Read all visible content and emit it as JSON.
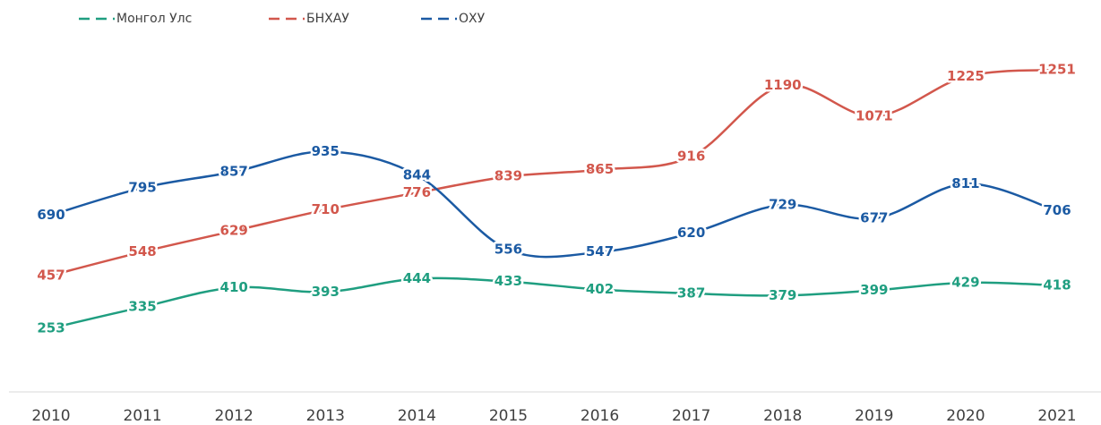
{
  "chart_data": {
    "type": "line",
    "categories": [
      "2010",
      "2011",
      "2012",
      "2013",
      "2014",
      "2015",
      "2016",
      "2017",
      "2018",
      "2019",
      "2020",
      "2021"
    ],
    "series": [
      {
        "name": "Монгол Улс",
        "color": "#1f9e80",
        "values": [
          253,
          335,
          410,
          393,
          444,
          433,
          402,
          387,
          379,
          399,
          429,
          418
        ]
      },
      {
        "name": "БНХАУ",
        "color": "#d2574c",
        "values": [
          457,
          548,
          629,
          710,
          776,
          839,
          865,
          916,
          1190,
          1071,
          1225,
          1251
        ]
      },
      {
        "name": "ОХУ",
        "color": "#1b5aa3",
        "values": [
          690,
          795,
          857,
          935,
          844,
          556,
          547,
          620,
          729,
          677,
          811,
          706
        ]
      }
    ],
    "smooth": true,
    "legend": "top-left"
  }
}
